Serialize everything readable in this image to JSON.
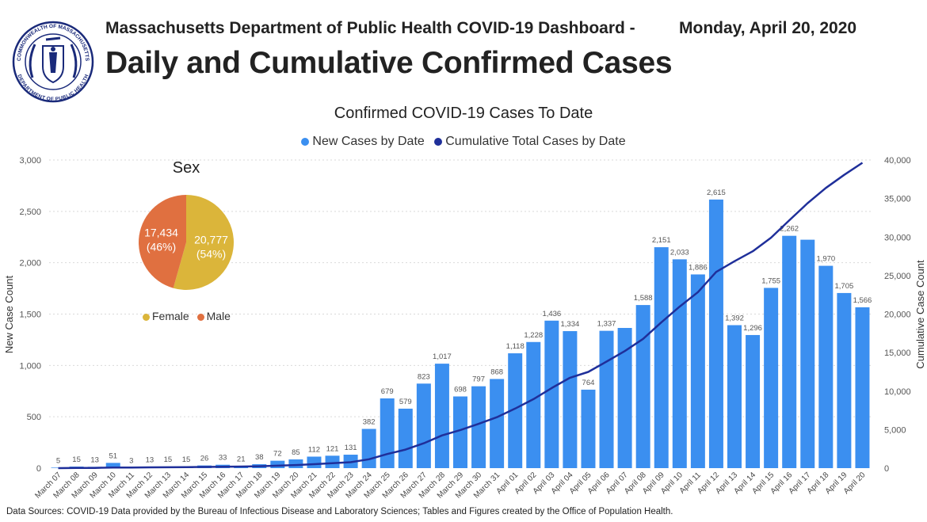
{
  "header": {
    "subtitle": "Massachusetts Department of Public Health COVID-19 Dashboard -",
    "date": "Monday, April 20, 2020",
    "title": "Daily and Cumulative Confirmed Cases"
  },
  "seal": {
    "top_text": "COMMONWEALTH OF MASSACHUSETTS",
    "bottom_text": "DEPARTMENT OF PUBLIC HEALTH"
  },
  "footer": "Data Sources: COVID-19 Data provided by the Bureau of Infectious Disease and Laboratory Sciences; Tables and Figures created by the Office of Population Health.",
  "chart_data": [
    {
      "type": "bar",
      "title": "Confirmed COVID-19 Cases To Date",
      "legend_position": "top-center",
      "grid": true,
      "categories": [
        "March 07",
        "March 08",
        "March 09",
        "March 10",
        "March 11",
        "March 12",
        "March 13",
        "March 14",
        "March 15",
        "March 16",
        "March 17",
        "March 18",
        "March 19",
        "March 20",
        "March 21",
        "March 22",
        "March 23",
        "March 24",
        "March 25",
        "March 26",
        "March 27",
        "March 28",
        "March 29",
        "March 30",
        "March 31",
        "April 01",
        "April 02",
        "April 03",
        "April 04",
        "April 05",
        "April 06",
        "April 07",
        "April 08",
        "April 09",
        "April 10",
        "April 11",
        "April 12",
        "April 13",
        "April 14",
        "April 15",
        "April 16",
        "April 17",
        "April 18",
        "April 19",
        "April 20"
      ],
      "series": [
        {
          "name": "New Cases by Date",
          "axis": "left",
          "color": "#3b8ff0",
          "values": [
            5,
            15,
            13,
            51,
            3,
            13,
            15,
            15,
            26,
            33,
            21,
            38,
            72,
            85,
            112,
            121,
            131,
            382,
            679,
            579,
            823,
            1017,
            698,
            797,
            868,
            1118,
            1228,
            1436,
            1334,
            764,
            1337,
            1365,
            1588,
            2151,
            2033,
            1886,
            2615,
            1392,
            1296,
            1755,
            2262,
            2224,
            1970,
            1705,
            1566
          ],
          "labels": [
            "5",
            "15",
            "13",
            "51",
            "3",
            "13",
            "15",
            "15",
            "26",
            "33",
            "21",
            "38",
            "72",
            "85",
            "112",
            "121",
            "131",
            "382",
            "679",
            "579",
            "823",
            "1,017",
            "698",
            "797",
            "868",
            "1,118",
            "1,228",
            "1,436",
            "1,334",
            "764",
            "1,337",
            "",
            "1,588",
            "2,151",
            "2,033",
            "1,886",
            "2,615",
            "1,392",
            "1,296",
            "1,755",
            "2,262",
            "",
            "1,970",
            "1,705",
            "1,566"
          ]
        },
        {
          "name": "Cumulative Total Cases by Date",
          "axis": "right",
          "color": "#1f2f9a",
          "type": "line",
          "values": [
            5,
            20,
            33,
            84,
            87,
            100,
            115,
            130,
            156,
            189,
            210,
            248,
            320,
            405,
            517,
            638,
            769,
            1151,
            1830,
            2409,
            3232,
            4249,
            4947,
            5744,
            6612,
            7730,
            8958,
            10394,
            11728,
            12492,
            13829,
            15194,
            16782,
            18933,
            20966,
            22852,
            25467,
            26859,
            28155,
            29910,
            32172,
            34396,
            36366,
            38071,
            39637
          ]
        }
      ],
      "ylabel": "New Case Count",
      "y2label": "Cumulative Case Count",
      "ylim": [
        0,
        3000
      ],
      "y2lim": [
        0,
        40000
      ],
      "yticks": [
        "0",
        "500",
        "1,000",
        "1,500",
        "2,000",
        "2,500",
        "3,000"
      ],
      "y2ticks": [
        "0",
        "5,000",
        "10,000",
        "15,000",
        "20,000",
        "25,000",
        "30,000",
        "35,000",
        "40,000"
      ]
    },
    {
      "type": "pie",
      "title": "Sex",
      "legend_position": "bottom",
      "slices": [
        {
          "name": "Female",
          "value": 20777,
          "label": "20,777",
          "pct": "(54%)",
          "color": "#dbb53a"
        },
        {
          "name": "Male",
          "value": 17434,
          "label": "17,434",
          "pct": "(46%)",
          "color": "#e07040"
        }
      ]
    }
  ]
}
